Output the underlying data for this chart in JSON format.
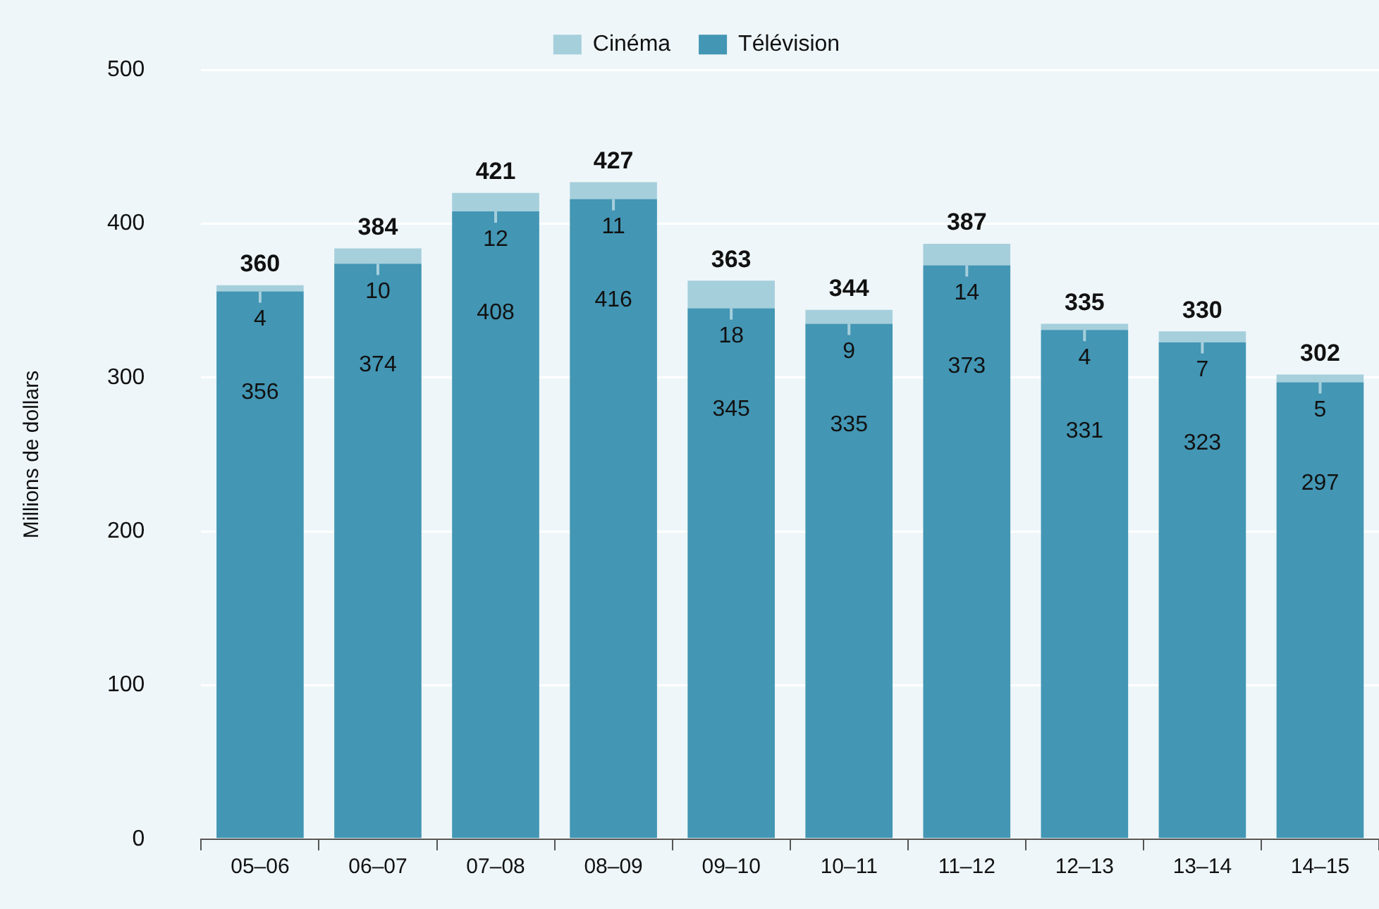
{
  "chart_data": {
    "type": "bar",
    "stacked": true,
    "ylabel": "Millions de dollars",
    "categories": [
      "05–06",
      "06–07",
      "07–08",
      "08–09",
      "09–10",
      "10–11",
      "11–12",
      "12–13",
      "13–14",
      "14–15"
    ],
    "series": [
      {
        "name": "Télévision",
        "color": "#4396b4",
        "values": [
          356,
          374,
          408,
          416,
          345,
          335,
          373,
          331,
          323,
          297
        ]
      },
      {
        "name": "Cinéma",
        "color": "#a6cfdc",
        "values": [
          4,
          10,
          12,
          11,
          18,
          9,
          14,
          4,
          7,
          5
        ]
      }
    ],
    "totals": [
      "360",
      "384",
      "421",
      "427",
      "363",
      "344",
      "387",
      "335",
      "330",
      "302"
    ],
    "ylim": [
      0,
      500
    ],
    "yticks": [
      0,
      100,
      200,
      300,
      400,
      500
    ],
    "grid": "y",
    "legend": "top",
    "data_labels": true
  }
}
